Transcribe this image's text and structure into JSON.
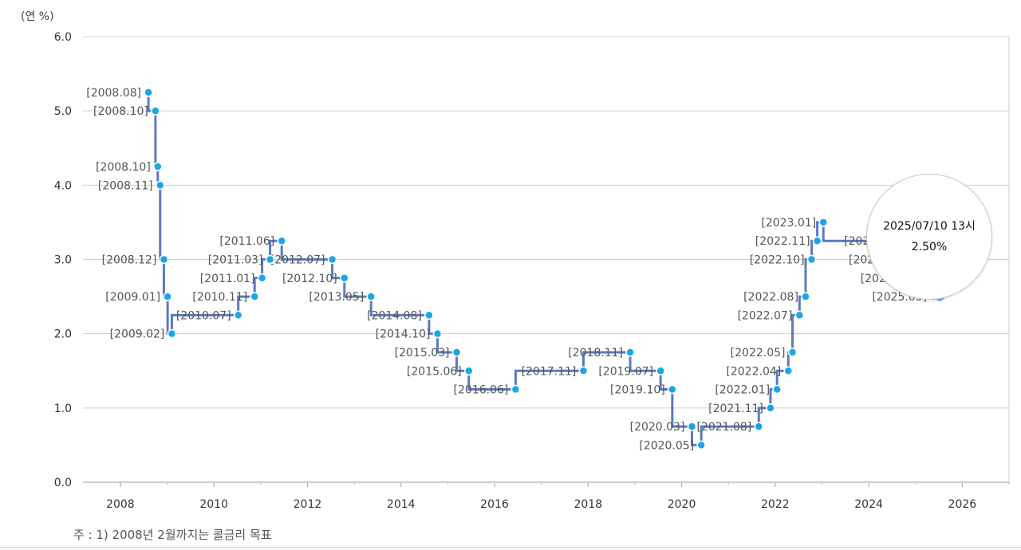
{
  "unit_label": "(연 %)",
  "footnote": "주 : 1) 2008년 2월까지는 콜금리 목표",
  "tooltip": {
    "date": "2025/07/10 13시",
    "value": "2.50%"
  },
  "colors": {
    "line": "#5b7bc0",
    "point": "#1aa6e8",
    "grid": "#cfcfcf",
    "label": "#555555"
  },
  "chart_data": {
    "type": "line",
    "step": true,
    "ylim": [
      0,
      6
    ],
    "xlim": [
      2007.2,
      2027.0
    ],
    "y_ticks": [
      "0.0",
      "1.0",
      "2.0",
      "3.0",
      "4.0",
      "5.0",
      "6.0"
    ],
    "x_ticks": [
      "2008",
      "2010",
      "2012",
      "2014",
      "2016",
      "2018",
      "2020",
      "2022",
      "2024",
      "2026"
    ],
    "grid": "horizontal",
    "points": [
      {
        "x": 2008.6,
        "y": 5.25,
        "label": "[2008.08]"
      },
      {
        "x": 2008.75,
        "y": 5.0,
        "label": "[2008.10]"
      },
      {
        "x": 2008.8,
        "y": 4.25,
        "label": "[2008.10]"
      },
      {
        "x": 2008.85,
        "y": 4.0,
        "label": "[2008.11]"
      },
      {
        "x": 2008.93,
        "y": 3.0,
        "label": "[2008.12]"
      },
      {
        "x": 2009.01,
        "y": 2.5,
        "label": "[2009.01]"
      },
      {
        "x": 2009.1,
        "y": 2.0,
        "label": "[2009.02]"
      },
      {
        "x": 2010.52,
        "y": 2.25,
        "label": "[2010.07]"
      },
      {
        "x": 2010.87,
        "y": 2.5,
        "label": "[2010.11]"
      },
      {
        "x": 2011.03,
        "y": 2.75,
        "label": "[2011.01]"
      },
      {
        "x": 2011.2,
        "y": 3.0,
        "label": "[2011.03]"
      },
      {
        "x": 2011.45,
        "y": 3.25,
        "label": "[2011.06]"
      },
      {
        "x": 2012.53,
        "y": 3.0,
        "label": "[2012.07]"
      },
      {
        "x": 2012.79,
        "y": 2.75,
        "label": "[2012.10]"
      },
      {
        "x": 2013.36,
        "y": 2.5,
        "label": "[2013.05]"
      },
      {
        "x": 2014.6,
        "y": 2.25,
        "label": "[2014.08]"
      },
      {
        "x": 2014.78,
        "y": 2.0,
        "label": "[2014.10]"
      },
      {
        "x": 2015.19,
        "y": 1.75,
        "label": "[2015.03]"
      },
      {
        "x": 2015.45,
        "y": 1.5,
        "label": "[2015.06]"
      },
      {
        "x": 2016.45,
        "y": 1.25,
        "label": "[2016.06]"
      },
      {
        "x": 2017.9,
        "y": 1.5,
        "label": "[2017.11]"
      },
      {
        "x": 2018.9,
        "y": 1.75,
        "label": "[2018.11]"
      },
      {
        "x": 2019.55,
        "y": 1.5,
        "label": "[2019.07]"
      },
      {
        "x": 2019.8,
        "y": 1.25,
        "label": "[2019.10]"
      },
      {
        "x": 2020.22,
        "y": 0.75,
        "label": "[2020.03]"
      },
      {
        "x": 2020.42,
        "y": 0.5,
        "label": "[2020.05]"
      },
      {
        "x": 2021.65,
        "y": 0.75,
        "label": "[2021.08]"
      },
      {
        "x": 2021.9,
        "y": 1.0,
        "label": "[2021.11]"
      },
      {
        "x": 2022.04,
        "y": 1.25,
        "label": "[2022.01]"
      },
      {
        "x": 2022.28,
        "y": 1.5,
        "label": "[2022.04]"
      },
      {
        "x": 2022.37,
        "y": 1.75,
        "label": "[2022.05]"
      },
      {
        "x": 2022.52,
        "y": 2.25,
        "label": "[2022.07]"
      },
      {
        "x": 2022.65,
        "y": 2.5,
        "label": "[2022.08]"
      },
      {
        "x": 2022.78,
        "y": 3.0,
        "label": "[2022.10]"
      },
      {
        "x": 2022.9,
        "y": 3.25,
        "label": "[2022.11]"
      },
      {
        "x": 2023.03,
        "y": 3.5,
        "label": "[2023.01]"
      },
      {
        "x": 2024.8,
        "y": 3.25,
        "label": "[2024.10]"
      },
      {
        "x": 2024.9,
        "y": 3.0,
        "label": "[2024.11]"
      },
      {
        "x": 2025.15,
        "y": 2.75,
        "label": "[2025.02]"
      },
      {
        "x": 2025.4,
        "y": 2.5,
        "label": "[2025.05]"
      },
      {
        "x": 2025.52,
        "y": 2.5,
        "label": ""
      }
    ]
  }
}
